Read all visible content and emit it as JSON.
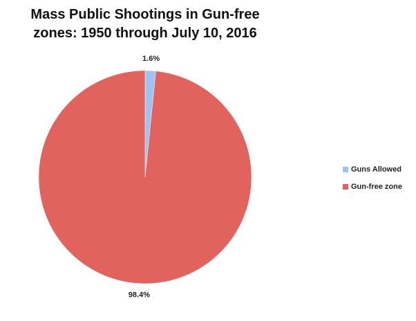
{
  "chart_data": {
    "type": "pie",
    "title": "Mass Public Shootings in Gun-free zones: 1950 through July 10, 2016",
    "categories": [
      "Guns Allowed",
      "Gun-free zone"
    ],
    "values": [
      1.6,
      98.4
    ],
    "value_labels": [
      "1.6%",
      "98.4%"
    ],
    "colors": [
      "#9cc4f2",
      "#e2625e"
    ],
    "legend": "right"
  }
}
